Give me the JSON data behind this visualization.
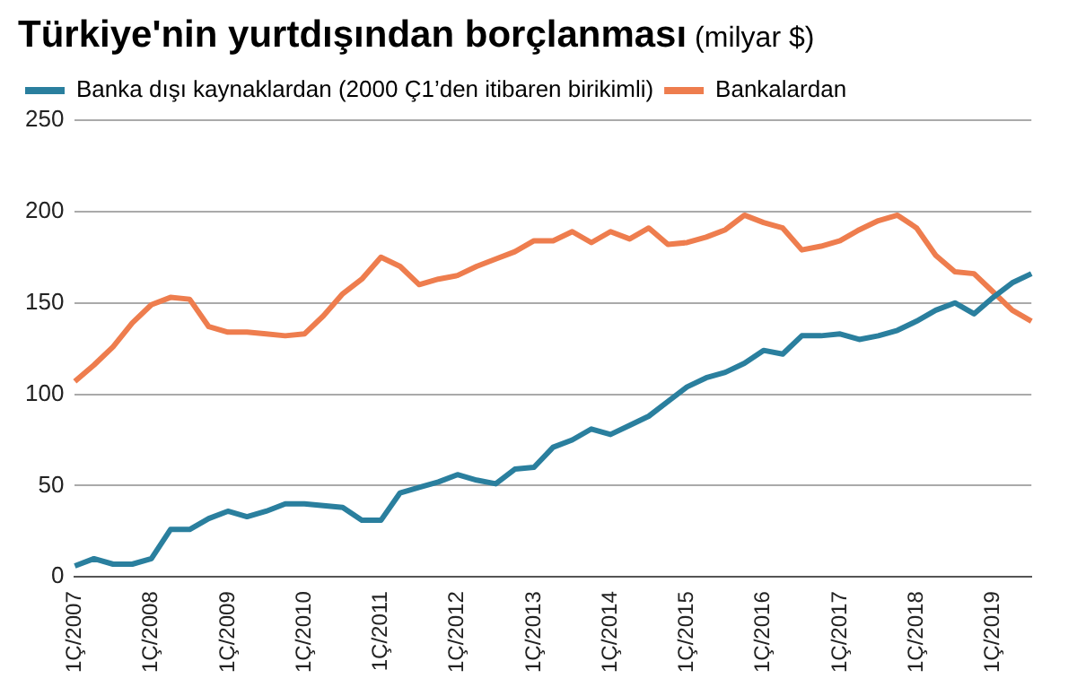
{
  "chart_data": {
    "type": "line",
    "title": "Türkiye'nin yurtdışından borçlanması",
    "subtitle": "(milyar $)",
    "categories": [
      "1Ç/2007",
      null,
      null,
      null,
      "1Ç/2008",
      null,
      null,
      null,
      "1Ç/2009",
      null,
      null,
      null,
      "1Ç/2010",
      null,
      null,
      null,
      "1Ç/2011",
      null,
      null,
      null,
      "1Ç/2012",
      null,
      null,
      null,
      "1Ç/2013",
      null,
      null,
      null,
      "1Ç/2014",
      null,
      null,
      null,
      "1Ç/2015",
      null,
      null,
      null,
      "1Ç/2016",
      null,
      null,
      null,
      "1Ç/2017",
      null,
      null,
      null,
      "1Ç/2018",
      null,
      null,
      null,
      "1Ç/2019",
      null,
      null
    ],
    "series": [
      {
        "name": "Banka dışı kaynaklardan (2000 Ç1’den itibaren birikimli)",
        "color": "#2a7f9e",
        "values": [
          6,
          10,
          7,
          7,
          10,
          26,
          26,
          32,
          36,
          33,
          36,
          40,
          40,
          39,
          38,
          31,
          31,
          46,
          49,
          52,
          56,
          53,
          51,
          59,
          60,
          71,
          75,
          81,
          78,
          83,
          88,
          96,
          104,
          109,
          112,
          117,
          124,
          122,
          132,
          132,
          133,
          130,
          132,
          135,
          140,
          146,
          150,
          144,
          153,
          161,
          166
        ]
      },
      {
        "name": "Bankalardan",
        "color": "#ee7d4e",
        "values": [
          107,
          116,
          126,
          139,
          149,
          153,
          152,
          137,
          134,
          134,
          133,
          132,
          133,
          143,
          155,
          163,
          175,
          170,
          160,
          163,
          165,
          170,
          174,
          178,
          184,
          184,
          189,
          183,
          189,
          185,
          191,
          182,
          183,
          186,
          190,
          198,
          194,
          191,
          179,
          181,
          184,
          190,
          195,
          198,
          191,
          176,
          167,
          166,
          156,
          146,
          140
        ]
      }
    ],
    "ylim": [
      0,
      250
    ],
    "yticks": [
      0,
      50,
      100,
      150,
      200,
      250
    ],
    "grid": "y",
    "legend": "top left",
    "marker": "none",
    "line_style": "solid"
  }
}
